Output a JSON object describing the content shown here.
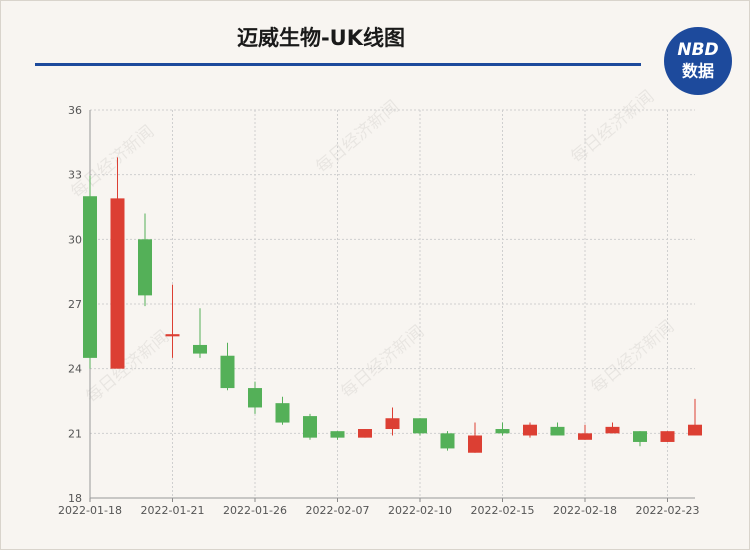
{
  "chart_data": {
    "type": "candlestick",
    "title": "迈威生物-UK线图",
    "categories": [
      "2022-01-18",
      null,
      null,
      "2022-01-21",
      null,
      null,
      "2022-01-26",
      null,
      null,
      "2022-02-07",
      null,
      null,
      "2022-02-10",
      null,
      null,
      "2022-02-15",
      null,
      null,
      "2022-02-18",
      null,
      null,
      "2022-02-23",
      null
    ],
    "open": [
      32.0,
      24.0,
      30.0,
      25.5,
      25.1,
      24.6,
      23.1,
      22.4,
      21.8,
      21.1,
      20.8,
      21.2,
      21.7,
      21.0,
      20.1,
      21.2,
      20.9,
      21.3,
      20.7,
      21.0,
      21.1,
      20.6,
      20.9
    ],
    "high": [
      32.95,
      33.8,
      31.2,
      27.9,
      26.8,
      25.2,
      23.4,
      22.7,
      21.9,
      21.1,
      21.2,
      22.2,
      21.7,
      21.1,
      21.5,
      21.5,
      21.5,
      21.5,
      21.4,
      21.5,
      21.1,
      21.1,
      22.6
    ],
    "low": [
      24.0,
      24.0,
      26.9,
      24.5,
      24.5,
      23.0,
      21.9,
      21.4,
      20.7,
      20.7,
      20.8,
      20.9,
      20.9,
      20.2,
      20.1,
      20.9,
      20.8,
      20.9,
      20.7,
      21.0,
      20.4,
      20.6,
      20.9
    ],
    "close": [
      24.5,
      31.9,
      27.4,
      25.6,
      24.7,
      23.1,
      22.2,
      21.5,
      20.8,
      20.8,
      21.2,
      21.7,
      21.0,
      20.3,
      20.9,
      21.0,
      21.4,
      20.9,
      21.0,
      21.3,
      20.6,
      21.1,
      21.4
    ],
    "up_color": "#dc3f33",
    "down_color": "#54b058",
    "ylim": [
      18,
      36
    ],
    "yticks": [
      18,
      21,
      24,
      27,
      30,
      33,
      36
    ],
    "grid": true
  },
  "logo": {
    "line1": "NBD",
    "line2": "数据"
  },
  "watermark": "每日经济新闻"
}
